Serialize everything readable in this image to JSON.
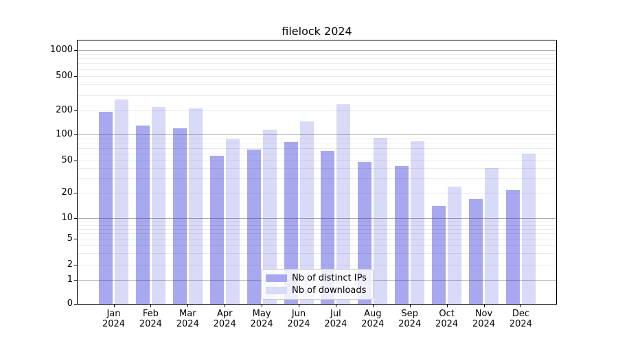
{
  "chart_data": {
    "type": "bar",
    "title": "filelock 2024",
    "categories": [
      {
        "month": "Jan",
        "year": "2024"
      },
      {
        "month": "Feb",
        "year": "2024"
      },
      {
        "month": "Mar",
        "year": "2024"
      },
      {
        "month": "Apr",
        "year": "2024"
      },
      {
        "month": "May",
        "year": "2024"
      },
      {
        "month": "Jun",
        "year": "2024"
      },
      {
        "month": "Jul",
        "year": "2024"
      },
      {
        "month": "Aug",
        "year": "2024"
      },
      {
        "month": "Sep",
        "year": "2024"
      },
      {
        "month": "Oct",
        "year": "2024"
      },
      {
        "month": "Nov",
        "year": "2024"
      },
      {
        "month": "Dec",
        "year": "2024"
      }
    ],
    "series": [
      {
        "name": "Nb of distinct IPs",
        "color": "#a8a8f0",
        "values": [
          192,
          130,
          121,
          57,
          67,
          82,
          64,
          48,
          43,
          14,
          17,
          22
        ]
      },
      {
        "name": "Nb of downloads",
        "color": "#d9d9f8",
        "values": [
          268,
          220,
          210,
          89,
          115,
          145,
          235,
          92,
          83,
          24,
          40,
          60
        ]
      }
    ],
    "y_axis": {
      "scale": "quasi-log",
      "ticks": [
        0,
        1,
        2,
        5,
        10,
        20,
        50,
        100,
        200,
        500,
        1000
      ],
      "anchors": [
        [
          0,
          0.0
        ],
        [
          1,
          0.0911
        ],
        [
          2,
          0.1484
        ],
        [
          5,
          0.2474
        ],
        [
          10,
          0.3245
        ],
        [
          20,
          0.4208
        ],
        [
          50,
          0.545
        ],
        [
          100,
          0.6422
        ],
        [
          200,
          0.7352
        ],
        [
          500,
          0.8654
        ],
        [
          1000,
          0.9635
        ]
      ],
      "major_grid_values": [
        1,
        10,
        100,
        1000
      ],
      "minor_grid_values": [
        2,
        3,
        4,
        5,
        6,
        7,
        8,
        9,
        20,
        30,
        40,
        50,
        60,
        70,
        80,
        90,
        200,
        300,
        400,
        500,
        600,
        700,
        800,
        900
      ]
    },
    "legend": {
      "position": "inside-bottom-center"
    },
    "colors": {
      "grid_major": "rgba(60,60,60,0.42)",
      "grid_minor": "rgba(0,0,0,0.08)",
      "spine": "#000000",
      "background": "#ffffff"
    }
  }
}
